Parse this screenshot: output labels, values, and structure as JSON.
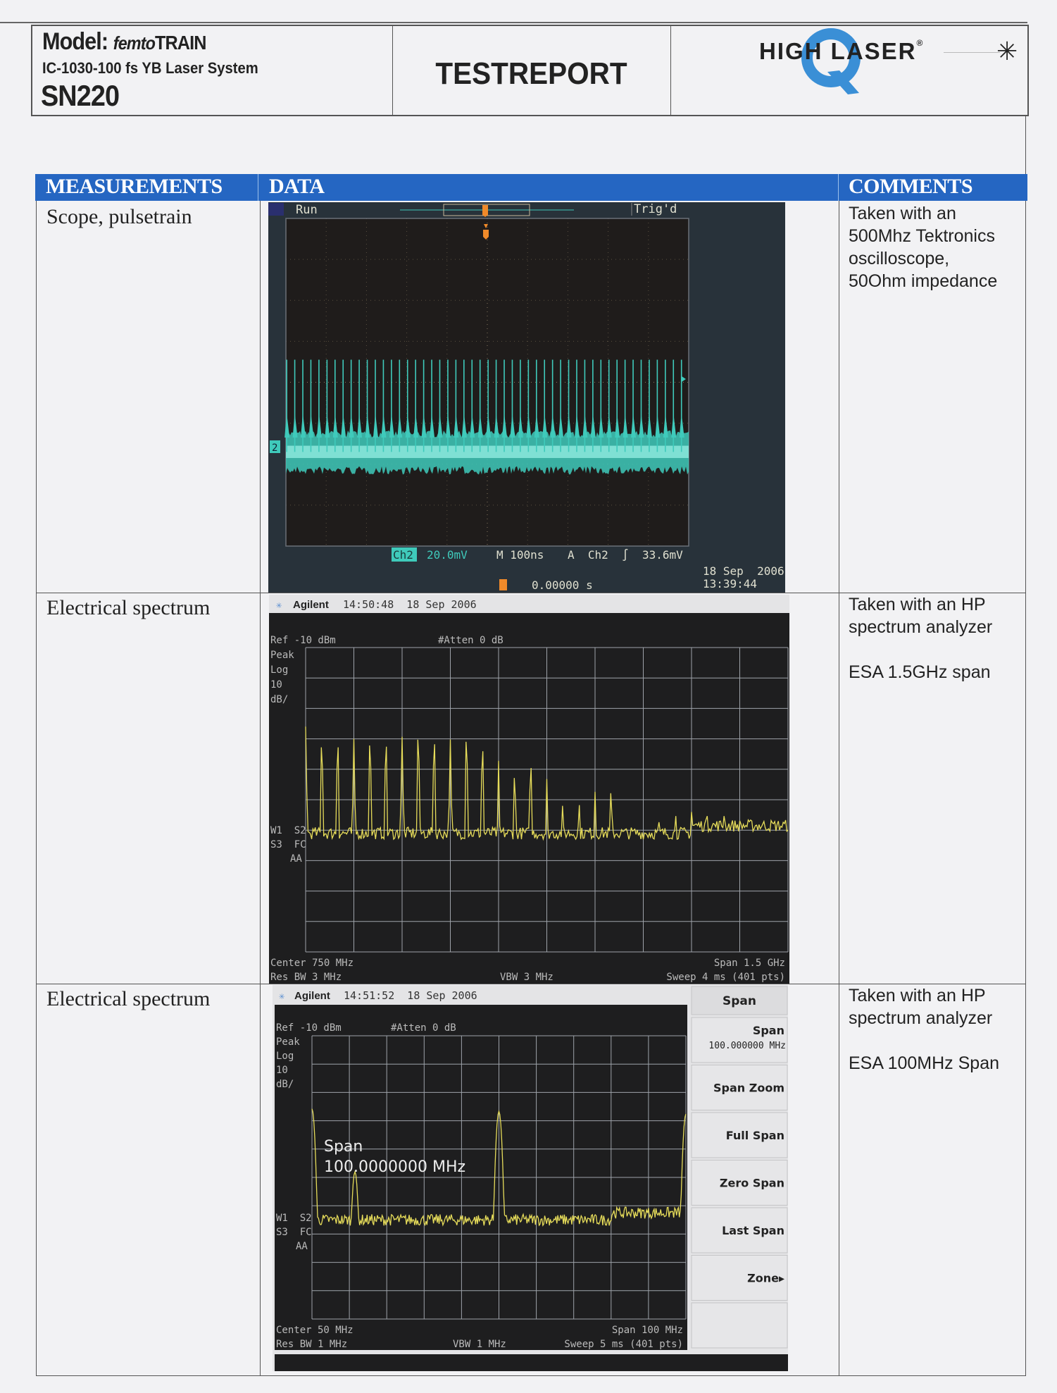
{
  "header": {
    "model_label": "Model:",
    "model_prefix": "femto",
    "model_name": "TRAIN",
    "system": "IC-1030-100 fs YB  Laser System",
    "serial": "SN220",
    "title": "TESTREPORT",
    "logo": {
      "text_left": "HIGH",
      "text_right": "LASER",
      "letter": "Q",
      "registered": "®",
      "brand_color": "#3a8fd6"
    },
    "corner_mark": "✳"
  },
  "table": {
    "header_color": "#2566c2",
    "columns": [
      "MEASUREMENTS",
      "DATA",
      "COMMENTS"
    ],
    "rows": [
      {
        "measurement": "Scope, pulsetrain",
        "comment": "Taken with an\n500Mhz Tektronics\noscilloscope,\n50Ohm impedance"
      },
      {
        "measurement": "Electrical spectrum",
        "comment": "Taken with an HP\nspectrum analyzer\n\nESA 1.5GHz span"
      },
      {
        "measurement": "Electrical spectrum",
        "comment": "Taken with an HP\nspectrum analyzer\n\nESA 100MHz Span"
      }
    ]
  },
  "scope": {
    "status": "Run",
    "trig_status": "Trig'd",
    "channel_marker": "2",
    "channel": "Ch2",
    "volts_div": "20.0mV",
    "timebase": "M 100ns",
    "trigger": "A  Ch2  ∫  33.6mV",
    "trigger_pos": "0.00000 s",
    "date": "18 Sep  2006",
    "time": "13:39:44",
    "trace_color": "#3fcabb"
  },
  "esa1": {
    "brand": "Agilent",
    "timestamp": "14:50:48  18 Sep 2006",
    "ref": "Ref -10 dBm",
    "atten": "#Atten 0 dB",
    "left_labels": [
      "Peak",
      "Log",
      "10",
      "dB/"
    ],
    "mode_labels": [
      "W1  S2",
      "S3  FC",
      "AA"
    ],
    "center": "Center 750 MHz",
    "res_bw": "Res BW 3 MHz",
    "vbw": "VBW 3 MHz",
    "span": "Span 1.5 GHz",
    "sweep": "Sweep 4 ms (401 pts)",
    "trace_color": "#e6dc5a"
  },
  "esa2": {
    "brand": "Agilent",
    "timestamp": "14:51:52  18 Sep 2006",
    "ref": "Ref -10 dBm",
    "atten": "#Atten 0 dB",
    "left_labels": [
      "Peak",
      "Log",
      "10",
      "dB/"
    ],
    "mode_labels": [
      "W1  S2",
      "S3  FC",
      "AA"
    ],
    "overlay_label": "Span",
    "overlay_value": "100.0000000 MHz",
    "center": "Center 50 MHz",
    "res_bw": "Res BW 1 MHz",
    "vbw": "VBW 1 MHz",
    "span": "Span 100 MHz",
    "sweep": "Sweep 5 ms (401 pts)",
    "menu_title": "Span",
    "softkeys": [
      {
        "label": "Span",
        "value": "100.000000 MHz"
      },
      {
        "label": "Span Zoom"
      },
      {
        "label": "Full Span"
      },
      {
        "label": "Zero Span"
      },
      {
        "label": "Last Span"
      },
      {
        "label": "Zone▸"
      },
      {
        "label": ""
      }
    ],
    "trace_color": "#e6dc5a"
  },
  "chart_data": [
    {
      "type": "line",
      "title": "",
      "xlabel": "",
      "ylabel": "",
      "x_units": "ns",
      "y_units": "mV",
      "xlim": [
        -500,
        500
      ],
      "ylim": [
        -80,
        80
      ],
      "x_divisions": 10,
      "y_divisions": 8,
      "grid": true,
      "pulse_period_ns": 20,
      "pulse_count": 50,
      "baseline_mV": -34,
      "pulse_peak_mV": 11,
      "baseline_noise_mV": 7
    },
    {
      "type": "line",
      "title": "",
      "x_units": "MHz",
      "y_units": "dBm",
      "xlim": [
        0,
        1500
      ],
      "ylim": [
        -110,
        -10
      ],
      "grid": true,
      "noise_floor_dBm": -71,
      "peaks": {
        "x": [
          0,
          50,
          100,
          150,
          200,
          250,
          300,
          350,
          400,
          450,
          500,
          550,
          600,
          650,
          700,
          750,
          800,
          850,
          900,
          950,
          1100,
          1150,
          1200,
          1250,
          1300
        ],
        "y": [
          -36,
          -40.4,
          -40.4,
          -40.0,
          -39.8,
          -40.2,
          -39.3,
          -37.9,
          -39.4,
          -40.2,
          -38.6,
          -41.7,
          -47.2,
          -50.5,
          -47.2,
          -53.2,
          -59.6,
          -59.4,
          -57.4,
          -55.5,
          -65,
          -63,
          -64,
          -63,
          -63
        ]
      }
    },
    {
      "type": "line",
      "title": "",
      "x_units": "MHz",
      "y_units": "dBm",
      "xlim": [
        0,
        100
      ],
      "ylim": [
        -110,
        -10
      ],
      "grid": true,
      "noise_floor_dBm": -75,
      "peaks": {
        "x": [
          0,
          11.5,
          50,
          100
        ],
        "y": [
          -35.8,
          -58,
          -36.7,
          -37.6
        ]
      }
    }
  ]
}
